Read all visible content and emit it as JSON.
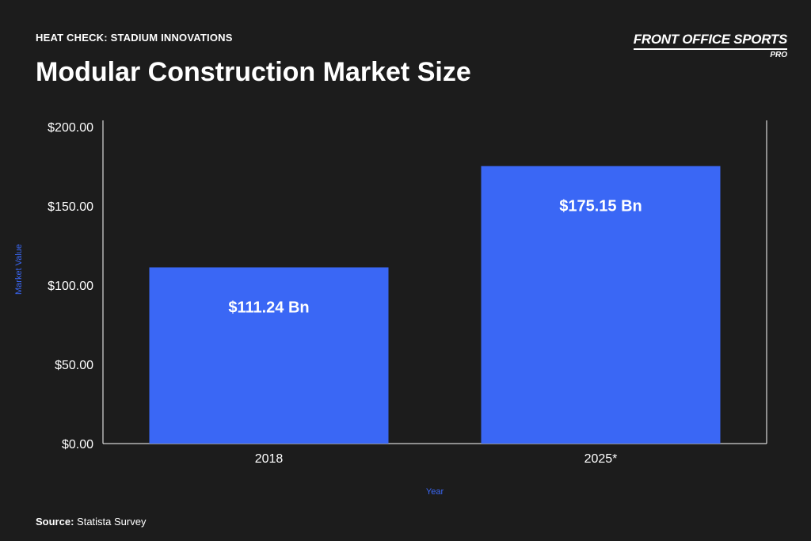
{
  "header": {
    "kicker": "HEAT CHECK: STADIUM INNOVATIONS",
    "title": "Modular Construction Market Size",
    "logo_main": "FRONT OFFICE SPORTS",
    "logo_sub": "PRO"
  },
  "footer": {
    "source_label": "Source:",
    "source_value": "Statista Survey"
  },
  "colors": {
    "background": "#1c1c1c",
    "bar": "#3a67f5",
    "axis_label": "#3a67f5",
    "text": "#ffffff"
  },
  "chart_data": {
    "type": "bar",
    "categories": [
      "2018",
      "2025*"
    ],
    "values": [
      111.24,
      175.15
    ],
    "data_labels": [
      "$111.24 Bn",
      "$175.15 Bn"
    ],
    "xlabel": "Year",
    "ylabel": "Market Value",
    "ylim": [
      0,
      200
    ],
    "yticks": [
      "$0.00",
      "$50.00",
      "$100.00",
      "$150.00",
      "$200.00"
    ],
    "ytick_values": [
      0,
      50,
      100,
      150,
      200
    ],
    "grid": false,
    "legend": "none"
  }
}
